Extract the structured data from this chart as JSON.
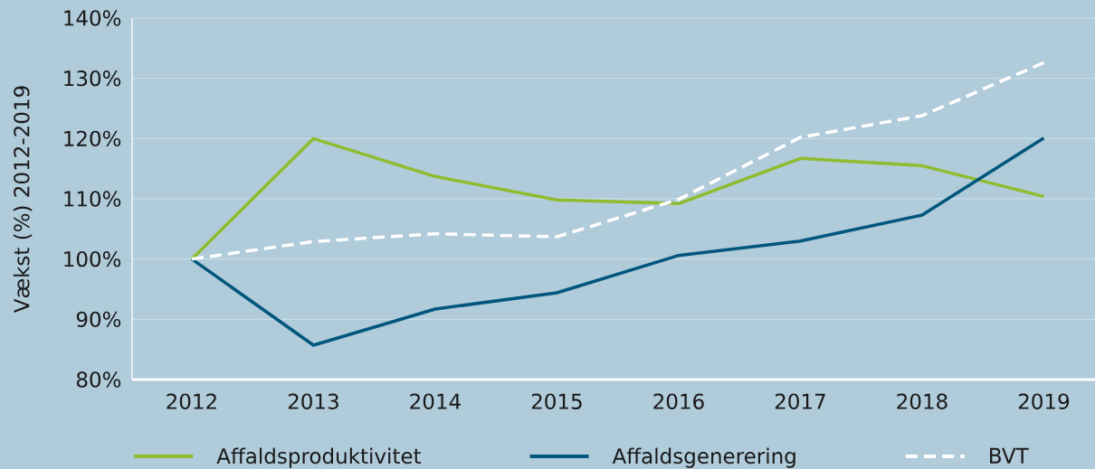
{
  "chart_data": {
    "type": "line",
    "ylabel": "Vækst (%) 2012-2019",
    "categories": [
      "2012",
      "2013",
      "2014",
      "2015",
      "2016",
      "2017",
      "2018",
      "2019"
    ],
    "series": [
      {
        "name": "Affaldsproduktivitet",
        "color": "#8fbc2e",
        "values": [
          100,
          120.0,
          113.7,
          109.8,
          109.2,
          116.7,
          115.5,
          110.4
        ]
      },
      {
        "name": "Affaldsgenerering",
        "color": "#00567d",
        "values": [
          100,
          85.7,
          91.7,
          94.4,
          100.6,
          103.0,
          107.3,
          120.1
        ]
      },
      {
        "name": "BVT",
        "color": "#ffffff",
        "line_style": "dashed",
        "values": [
          100,
          102.9,
          104.2,
          103.7,
          109.9,
          120.2,
          123.8,
          132.6
        ]
      }
    ],
    "ylim": [
      80,
      140
    ],
    "yticks": [
      {
        "value": 80,
        "label": "80%"
      },
      {
        "value": 90,
        "label": "90%"
      },
      {
        "value": 100,
        "label": "100%"
      },
      {
        "value": 110,
        "label": "110%"
      },
      {
        "value": 120,
        "label": "120%"
      },
      {
        "value": 130,
        "label": "130%"
      },
      {
        "value": 140,
        "label": "140%"
      }
    ],
    "grid": "y",
    "legend": "bottom",
    "marker": "none",
    "line_style": "solid"
  }
}
